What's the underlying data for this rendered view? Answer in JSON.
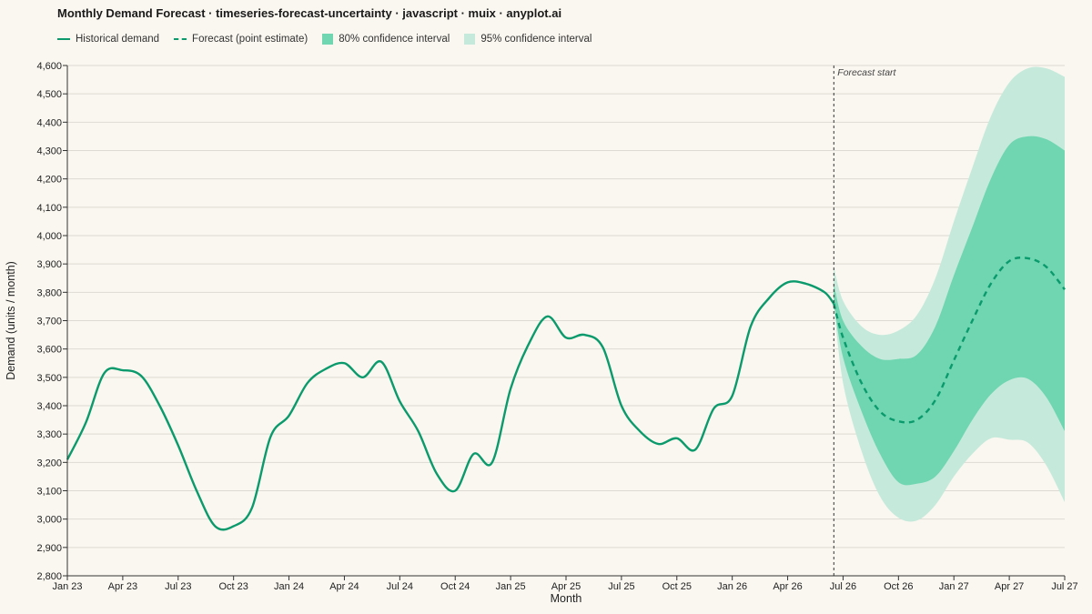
{
  "title": "Monthly Demand Forecast · timeseries-forecast-uncertainty · javascript · muix · anyplot.ai",
  "legend": [
    {
      "label": "Historical demand",
      "kind": "line",
      "color": "#0a9a6c"
    },
    {
      "label": "Forecast (point estimate)",
      "kind": "dash",
      "color": "#0a9a6c"
    },
    {
      "label": "80% confidence interval",
      "kind": "box",
      "color": "#6fd6b1"
    },
    {
      "label": "95% confidence interval",
      "kind": "box",
      "color": "#c5eadb"
    }
  ],
  "chart_data": {
    "type": "line",
    "xlabel": "Month",
    "ylabel": "Demand (units / month)",
    "ylim": [
      2800,
      4600
    ],
    "ytick_step": 100,
    "grid": true,
    "x_ticks": [
      "Jan 23",
      "Apr 23",
      "Jul 23",
      "Oct 23",
      "Jan 24",
      "Apr 24",
      "Jul 24",
      "Oct 24",
      "Jan 25",
      "Apr 25",
      "Jul 25",
      "Oct 25",
      "Jan 26",
      "Apr 26",
      "Jul 26",
      "Oct 26",
      "Jan 27",
      "Apr 27",
      "Jul 27"
    ],
    "forecast_start_label": "Forecast start",
    "forecast_start_x": 41.5,
    "series": [
      {
        "name": "Historical demand",
        "x": [
          0,
          1,
          2,
          3,
          4,
          5,
          6,
          7,
          8,
          9,
          10,
          11,
          12,
          13,
          14,
          15,
          16,
          17,
          18,
          19,
          20,
          21,
          22,
          23,
          24,
          25,
          26,
          27,
          28,
          29,
          30,
          31,
          32,
          33,
          34,
          35,
          36,
          37,
          38,
          39,
          40,
          41,
          41.5
        ],
        "values": [
          3210,
          3340,
          3515,
          3525,
          3505,
          3400,
          3260,
          3100,
          2975,
          2975,
          3040,
          3290,
          3365,
          3480,
          3530,
          3550,
          3500,
          3555,
          3415,
          3310,
          3160,
          3100,
          3230,
          3200,
          3460,
          3620,
          3715,
          3640,
          3650,
          3605,
          3400,
          3310,
          3265,
          3285,
          3245,
          3390,
          3435,
          3680,
          3780,
          3835,
          3830,
          3800,
          3760
        ],
        "color": "#0a9a6c"
      },
      {
        "name": "Forecast (point estimate)",
        "x": [
          41.5,
          42,
          43,
          44,
          45,
          46,
          47,
          48,
          49,
          50,
          51,
          52,
          53,
          54
        ],
        "values": [
          3760,
          3640,
          3480,
          3380,
          3345,
          3350,
          3420,
          3560,
          3700,
          3830,
          3910,
          3920,
          3890,
          3810
        ],
        "color": "#0a9a6c"
      }
    ],
    "bands": [
      {
        "name": "95% confidence interval",
        "x": [
          41.5,
          42,
          43,
          44,
          45,
          46,
          47,
          48,
          49,
          50,
          51,
          52,
          53,
          54
        ],
        "lower": [
          3760,
          3480,
          3240,
          3080,
          3005,
          2995,
          3050,
          3150,
          3230,
          3285,
          3280,
          3270,
          3190,
          3060
        ],
        "upper": [
          3890,
          3770,
          3680,
          3650,
          3665,
          3720,
          3850,
          4050,
          4240,
          4420,
          4540,
          4590,
          4590,
          4560
        ],
        "color": "#c5eadb"
      },
      {
        "name": "80% confidence interval",
        "x": [
          41.5,
          42,
          43,
          44,
          45,
          46,
          47,
          48,
          49,
          50,
          51,
          52,
          53,
          54
        ],
        "lower": [
          3760,
          3570,
          3380,
          3230,
          3130,
          3125,
          3150,
          3240,
          3350,
          3440,
          3490,
          3495,
          3430,
          3310
        ],
        "upper": [
          3830,
          3700,
          3610,
          3565,
          3565,
          3580,
          3680,
          3860,
          4030,
          4200,
          4320,
          4350,
          4340,
          4300
        ],
        "color": "#6fd6b1"
      }
    ]
  }
}
